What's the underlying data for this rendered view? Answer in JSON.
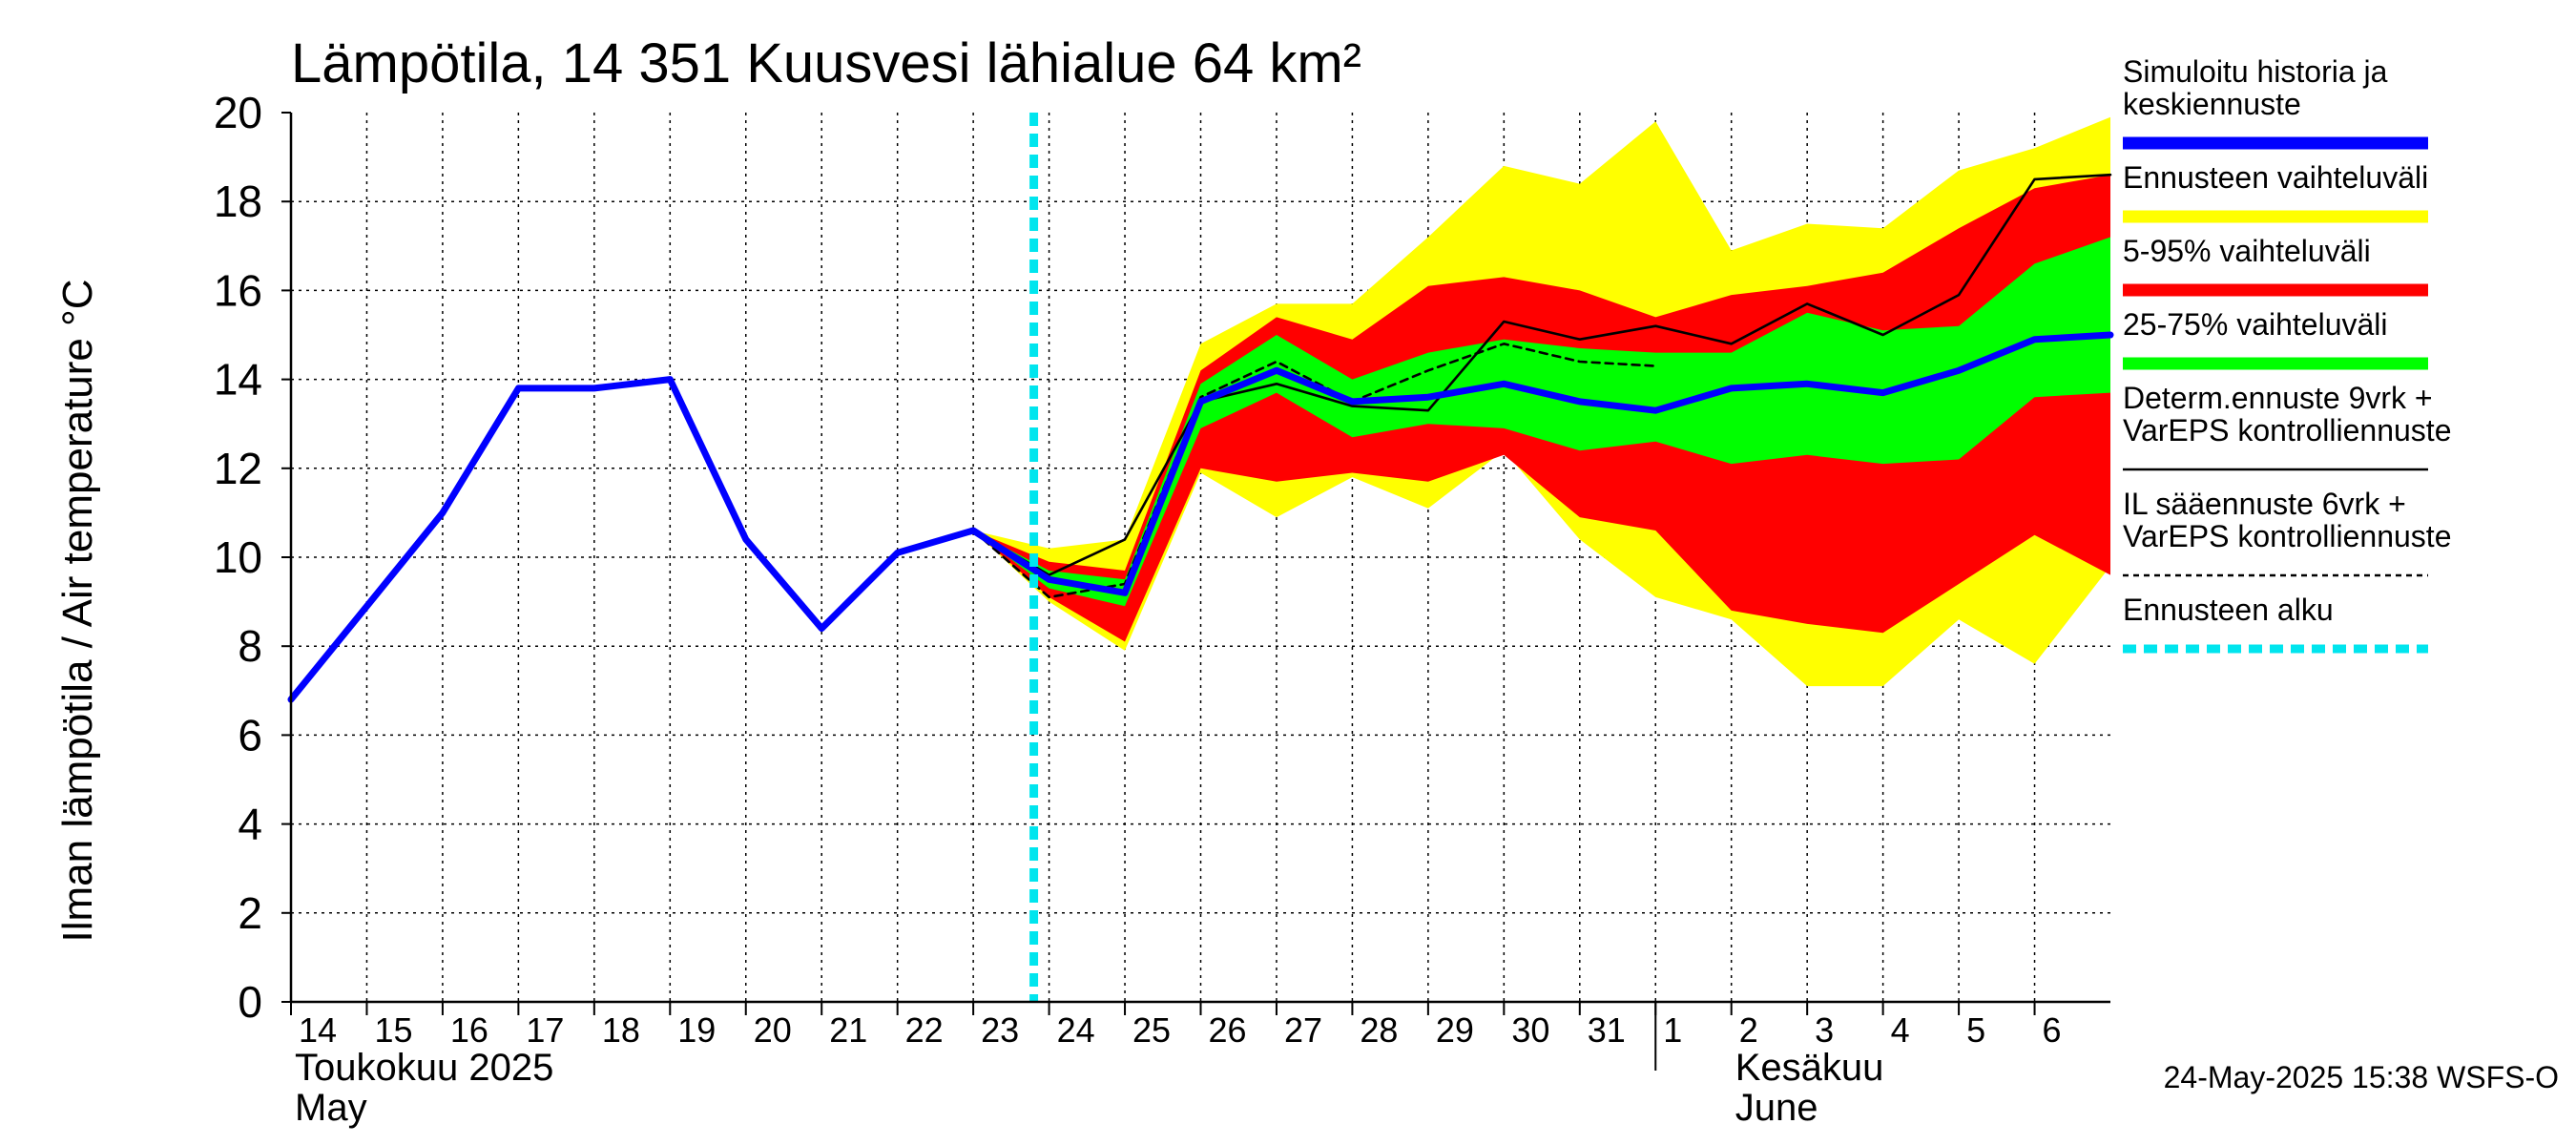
{
  "chart_data": {
    "type": "area",
    "title": "Lämpötila, 14 351 Kuusvesi lähialue 64 km²",
    "ylabel": "Ilman lämpötila / Air temperature   °C",
    "ylim": [
      0,
      20
    ],
    "yticks": [
      "0",
      "2",
      "4",
      "6",
      "8",
      "10",
      "12",
      "14",
      "16",
      "18",
      "20"
    ],
    "grid": true,
    "legend_position": "right",
    "x_start": "2025-05-14",
    "x_end": "2025-06-06T24:00",
    "day_ticks": [
      "14",
      "15",
      "16",
      "17",
      "18",
      "19",
      "20",
      "21",
      "22",
      "23",
      "24",
      "25",
      "26",
      "27",
      "28",
      "29",
      "30",
      "31",
      "1",
      "2",
      "3",
      "4",
      "5",
      "6"
    ],
    "month_labels": [
      {
        "line1": "Toukokuu  2025",
        "line2": "May",
        "start": "2025-05-14"
      },
      {
        "line1": "Kesäkuu",
        "line2": "June",
        "start": "2025-06-02"
      }
    ],
    "forecast_start": "2025-05-24",
    "x": [
      "2025-05-14",
      "2025-05-15",
      "2025-05-16",
      "2025-05-17",
      "2025-05-18",
      "2025-05-19",
      "2025-05-20",
      "2025-05-21",
      "2025-05-22",
      "2025-05-23",
      "2025-05-24",
      "2025-05-25",
      "2025-05-26",
      "2025-05-27",
      "2025-05-28",
      "2025-05-29",
      "2025-05-30",
      "2025-05-31",
      "2025-06-01",
      "2025-06-02",
      "2025-06-03",
      "2025-06-04",
      "2025-06-05",
      "2025-06-06",
      "2025-06-07"
    ],
    "series": [
      {
        "name": "Simuloitu historia ja keskiennuste",
        "color": "#0000ff",
        "values": [
          6.8,
          8.9,
          11.0,
          13.8,
          13.8,
          14.0,
          10.4,
          8.4,
          10.1,
          10.6,
          9.5,
          9.2,
          13.5,
          14.2,
          13.5,
          13.6,
          13.9,
          13.5,
          13.3,
          13.8,
          13.9,
          13.7,
          14.2,
          14.9,
          15.0
        ]
      },
      {
        "name": "Determ.ennuste 9vrk + VarEPS kontrolliennuste",
        "color": "#000000",
        "values": [
          null,
          null,
          null,
          null,
          null,
          null,
          null,
          null,
          null,
          10.6,
          9.6,
          10.4,
          13.5,
          13.9,
          13.4,
          13.3,
          15.3,
          14.9,
          15.2,
          14.8,
          15.7,
          15.0,
          15.9,
          18.5,
          18.6
        ]
      },
      {
        "name": "IL sääennuste 6vrk + VarEPS kontrolliennuste",
        "color": "#000000",
        "values": [
          null,
          null,
          null,
          null,
          null,
          null,
          null,
          null,
          null,
          10.6,
          9.1,
          9.4,
          13.6,
          14.4,
          13.5,
          14.2,
          14.8,
          14.4,
          14.3,
          null,
          null,
          null,
          null,
          null,
          null
        ]
      }
    ],
    "bands": [
      {
        "name": "Ennusteen vaihteluväli",
        "color": "#ffff00",
        "x": [
          "2025-05-23",
          "2025-05-24",
          "2025-05-25",
          "2025-05-26",
          "2025-05-27",
          "2025-05-28",
          "2025-05-29",
          "2025-05-30",
          "2025-05-31",
          "2025-06-01",
          "2025-06-02",
          "2025-06-03",
          "2025-06-04",
          "2025-06-05",
          "2025-06-06",
          "2025-06-07"
        ],
        "low": [
          10.6,
          9.0,
          7.9,
          11.9,
          10.9,
          11.8,
          11.1,
          12.4,
          10.4,
          9.1,
          8.6,
          7.1,
          7.1,
          8.6,
          7.6,
          9.8
        ],
        "high": [
          10.6,
          10.2,
          10.4,
          14.8,
          15.7,
          15.7,
          17.2,
          18.8,
          18.4,
          19.8,
          16.9,
          17.5,
          17.4,
          18.7,
          19.2,
          19.9
        ]
      },
      {
        "name": "5-95% vaihteluväli",
        "color": "#ff0000",
        "x": [
          "2025-05-23",
          "2025-05-24",
          "2025-05-25",
          "2025-05-26",
          "2025-05-27",
          "2025-05-28",
          "2025-05-29",
          "2025-05-30",
          "2025-05-31",
          "2025-06-01",
          "2025-06-02",
          "2025-06-03",
          "2025-06-04",
          "2025-06-05",
          "2025-06-06",
          "2025-06-07"
        ],
        "low": [
          10.6,
          9.1,
          8.1,
          12.0,
          11.7,
          11.9,
          11.7,
          12.3,
          10.9,
          10.6,
          8.8,
          8.5,
          8.3,
          9.4,
          10.5,
          9.6
        ],
        "high": [
          10.6,
          9.9,
          9.7,
          14.2,
          15.4,
          14.9,
          16.1,
          16.3,
          16.0,
          15.4,
          15.9,
          16.1,
          16.4,
          17.4,
          18.3,
          18.6
        ]
      },
      {
        "name": "25-75% vaihteluväli",
        "color": "#00ff00",
        "x": [
          "2025-05-23",
          "2025-05-24",
          "2025-05-25",
          "2025-05-26",
          "2025-05-27",
          "2025-05-28",
          "2025-05-29",
          "2025-05-30",
          "2025-05-31",
          "2025-06-01",
          "2025-06-02",
          "2025-06-03",
          "2025-06-04",
          "2025-06-05",
          "2025-06-06",
          "2025-06-07"
        ],
        "low": [
          10.6,
          9.3,
          8.9,
          12.9,
          13.7,
          12.7,
          13.0,
          12.9,
          12.4,
          12.6,
          12.1,
          12.3,
          12.1,
          12.2,
          13.6,
          13.7
        ],
        "high": [
          10.6,
          9.7,
          9.5,
          13.9,
          15.0,
          14.0,
          14.6,
          14.9,
          14.7,
          14.6,
          14.6,
          15.5,
          15.1,
          15.2,
          16.6,
          17.2
        ]
      }
    ],
    "legend": [
      {
        "label": "Simuloitu historia ja keskiennuste",
        "lines": [
          "Simuloitu historia ja",
          "keskiennuste"
        ],
        "color": "#0000ff",
        "style": "thick"
      },
      {
        "label": "Ennusteen vaihteluväli",
        "lines": [
          "Ennusteen vaihteluväli"
        ],
        "color": "#ffff00",
        "style": "thick"
      },
      {
        "label": "5-95% vaihteluväli",
        "lines": [
          "5-95% vaihteluväli"
        ],
        "color": "#ff0000",
        "style": "thick"
      },
      {
        "label": "25-75% vaihteluväli",
        "lines": [
          "25-75% vaihteluväli"
        ],
        "color": "#00ff00",
        "style": "thick"
      },
      {
        "label": "Determ.ennuste 9vrk + VarEPS kontrolliennuste",
        "lines": [
          "Determ.ennuste 9vrk +",
          "VarEPS kontrolliennuste"
        ],
        "color": "#000000",
        "style": "thin"
      },
      {
        "label": "IL sääennuste 6vrk + VarEPS kontrolliennuste",
        "lines": [
          "IL sääennuste 6vrk  +",
          "  VarEPS kontrolliennuste"
        ],
        "color": "#000000",
        "style": "dashed"
      },
      {
        "label": "Ennusteen alku",
        "lines": [
          "Ennusteen alku"
        ],
        "color": "#00e5ee",
        "style": "dotted"
      }
    ],
    "footer": "24-May-2025 15:38 WSFS-O"
  }
}
